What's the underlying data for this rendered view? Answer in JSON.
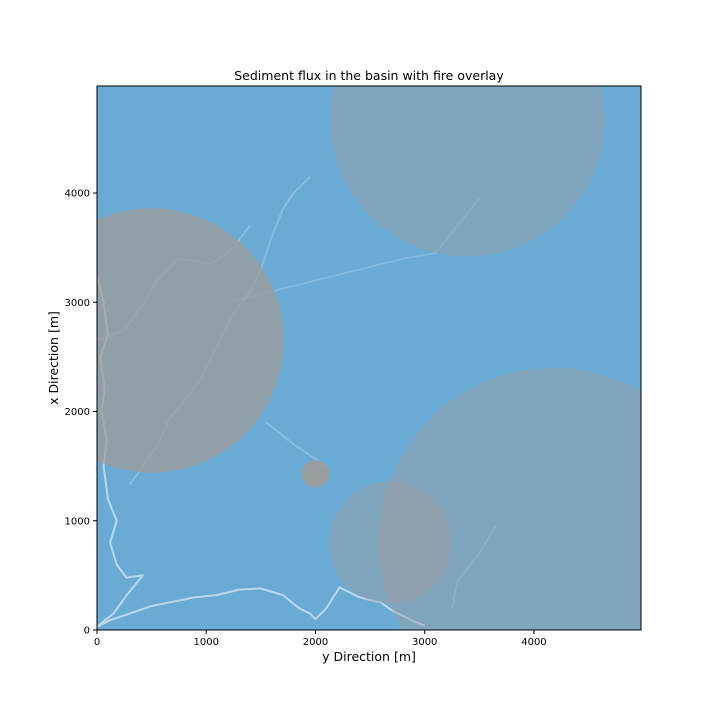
{
  "chart_data": {
    "type": "heatmap",
    "title": "Sediment flux in the basin with fire overlay",
    "xlabel": "y Direction [m]",
    "ylabel": "x Direction [m]",
    "xlim": [
      0,
      4980
    ],
    "ylim": [
      0,
      4980
    ],
    "xticks": [
      {
        "value": 0,
        "label": "0"
      },
      {
        "value": 1000,
        "label": "1000"
      },
      {
        "value": 2000,
        "label": "2000"
      },
      {
        "value": 3000,
        "label": "3000"
      },
      {
        "value": 4000,
        "label": "4000"
      }
    ],
    "yticks": [
      {
        "value": 0,
        "label": "0"
      },
      {
        "value": 1000,
        "label": "1000"
      },
      {
        "value": 2000,
        "label": "2000"
      },
      {
        "value": 3000,
        "label": "3000"
      },
      {
        "value": 4000,
        "label": "4000"
      }
    ],
    "grid": false,
    "background_color": "#6aabd6",
    "overlay_color": "#a09a96",
    "channel_color": "#c4dcee",
    "fire_circles": [
      {
        "cx": 500,
        "cy": 2650,
        "r": 1210,
        "opacity": 0.72
      },
      {
        "cx": 3390,
        "cy": 4680,
        "r": 1260,
        "opacity": 0.42
      },
      {
        "cx": 4180,
        "cy": 800,
        "r": 1600,
        "opacity": 0.42
      },
      {
        "cx": 2680,
        "cy": 800,
        "r": 560,
        "opacity": 0.42
      },
      {
        "cx": 2000,
        "cy": 1430,
        "r": 125,
        "opacity": 0.85
      }
    ],
    "channels": [
      {
        "name": "main-stem",
        "points": [
          [
            0,
            30
          ],
          [
            120,
            90
          ],
          [
            300,
            150
          ],
          [
            500,
            220
          ],
          [
            700,
            260
          ],
          [
            900,
            300
          ],
          [
            1100,
            320
          ],
          [
            1300,
            370
          ],
          [
            1500,
            380
          ],
          [
            1700,
            320
          ],
          [
            1850,
            200
          ],
          [
            1950,
            150
          ],
          [
            2000,
            100
          ],
          [
            2100,
            200
          ],
          [
            2220,
            390
          ],
          [
            2400,
            300
          ],
          [
            2600,
            250
          ],
          [
            2700,
            180
          ],
          [
            2800,
            130
          ],
          [
            2900,
            80
          ],
          [
            3000,
            40
          ]
        ],
        "opacity": 0.9
      },
      {
        "name": "west-channel",
        "points": [
          [
            0,
            30
          ],
          [
            150,
            150
          ],
          [
            280,
            330
          ],
          [
            420,
            500
          ],
          [
            270,
            480
          ],
          [
            180,
            600
          ],
          [
            120,
            800
          ],
          [
            180,
            1000
          ],
          [
            100,
            1200
          ],
          [
            60,
            1500
          ],
          [
            90,
            1750
          ],
          [
            40,
            2000
          ],
          [
            70,
            2200
          ],
          [
            30,
            2500
          ],
          [
            100,
            2700
          ],
          [
            60,
            3000
          ],
          [
            0,
            3250
          ]
        ],
        "opacity": 0.9
      },
      {
        "name": "tributary-1",
        "points": [
          [
            300,
            1330
          ],
          [
            420,
            1500
          ],
          [
            560,
            1700
          ],
          [
            650,
            1920
          ],
          [
            800,
            2100
          ],
          [
            950,
            2300
          ],
          [
            1050,
            2500
          ],
          [
            1150,
            2700
          ],
          [
            1250,
            2900
          ],
          [
            1400,
            3100
          ],
          [
            1500,
            3300
          ],
          [
            1600,
            3600
          ],
          [
            1700,
            3850
          ],
          [
            1800,
            4000
          ],
          [
            1950,
            4150
          ]
        ],
        "opacity": 0.35
      },
      {
        "name": "tributary-2",
        "points": [
          [
            0,
            2650
          ],
          [
            250,
            2750
          ],
          [
            400,
            2950
          ],
          [
            550,
            3200
          ],
          [
            750,
            3400
          ],
          [
            1050,
            3350
          ],
          [
            1250,
            3500
          ],
          [
            1400,
            3700
          ]
        ],
        "opacity": 0.35
      },
      {
        "name": "tributary-3",
        "points": [
          [
            1550,
            1900
          ],
          [
            1800,
            1700
          ],
          [
            1950,
            1600
          ],
          [
            2100,
            1500
          ]
        ],
        "opacity": 0.35
      },
      {
        "name": "tributary-4",
        "points": [
          [
            3250,
            200
          ],
          [
            3300,
            450
          ],
          [
            3500,
            700
          ],
          [
            3650,
            950
          ]
        ],
        "opacity": 0.3
      },
      {
        "name": "tributary-5",
        "points": [
          [
            1200,
            3000
          ],
          [
            1600,
            3100
          ],
          [
            2000,
            3200
          ],
          [
            2400,
            3300
          ],
          [
            2800,
            3400
          ],
          [
            3100,
            3450
          ],
          [
            3300,
            3700
          ],
          [
            3500,
            3950
          ]
        ],
        "opacity": 0.25
      }
    ]
  }
}
